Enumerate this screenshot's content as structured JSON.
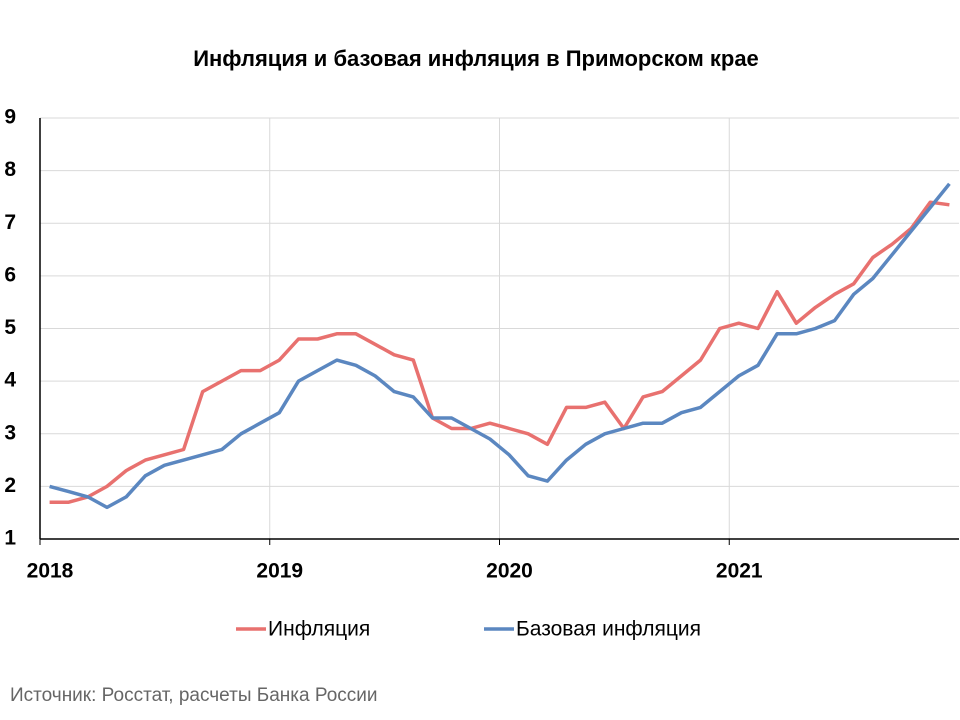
{
  "chart_data": {
    "type": "line",
    "title": "Инфляция и базовая инфляция в Приморском крае",
    "source": "Источник: Росстат, расчеты Банка России",
    "categories": [
      "2018",
      null,
      null,
      null,
      null,
      null,
      null,
      null,
      null,
      null,
      null,
      null,
      "2019",
      null,
      null,
      null,
      null,
      null,
      null,
      null,
      null,
      null,
      null,
      null,
      "2020",
      null,
      null,
      null,
      null,
      null,
      null,
      null,
      null,
      null,
      null,
      null,
      "2021",
      null,
      null,
      null,
      null,
      null,
      null,
      null,
      null,
      null,
      null,
      null
    ],
    "series": [
      {
        "name": "Инфляция",
        "color": "#e8716f",
        "values": [
          1.7,
          1.7,
          1.8,
          2.0,
          2.3,
          2.5,
          2.6,
          2.7,
          3.8,
          4.0,
          4.2,
          4.2,
          4.4,
          4.8,
          4.8,
          4.9,
          4.9,
          4.7,
          4.5,
          4.4,
          3.3,
          3.1,
          3.1,
          3.2,
          3.1,
          3.0,
          2.8,
          3.5,
          3.5,
          3.6,
          3.1,
          3.7,
          3.8,
          4.1,
          4.4,
          5.0,
          5.1,
          5.0,
          5.7,
          5.1,
          5.4,
          5.65,
          5.85,
          6.35,
          6.6,
          6.9,
          7.4,
          7.35
        ]
      },
      {
        "name": "Базовая инфляция",
        "color": "#5b87c0",
        "values": [
          2.0,
          1.9,
          1.8,
          1.6,
          1.8,
          2.2,
          2.4,
          2.5,
          2.6,
          2.7,
          3.0,
          3.2,
          3.4,
          4.0,
          4.2,
          4.4,
          4.3,
          4.1,
          3.8,
          3.7,
          3.3,
          3.3,
          3.1,
          2.9,
          2.6,
          2.2,
          2.1,
          2.5,
          2.8,
          3.0,
          3.1,
          3.2,
          3.2,
          3.4,
          3.5,
          3.8,
          4.1,
          4.3,
          4.9,
          4.9,
          5.0,
          5.15,
          5.65,
          5.95,
          6.4,
          6.85,
          7.3,
          7.75
        ]
      }
    ],
    "ylim": [
      1,
      9
    ],
    "yticks": [
      1,
      2,
      3,
      4,
      5,
      6,
      7,
      8,
      9
    ],
    "grid": true
  }
}
